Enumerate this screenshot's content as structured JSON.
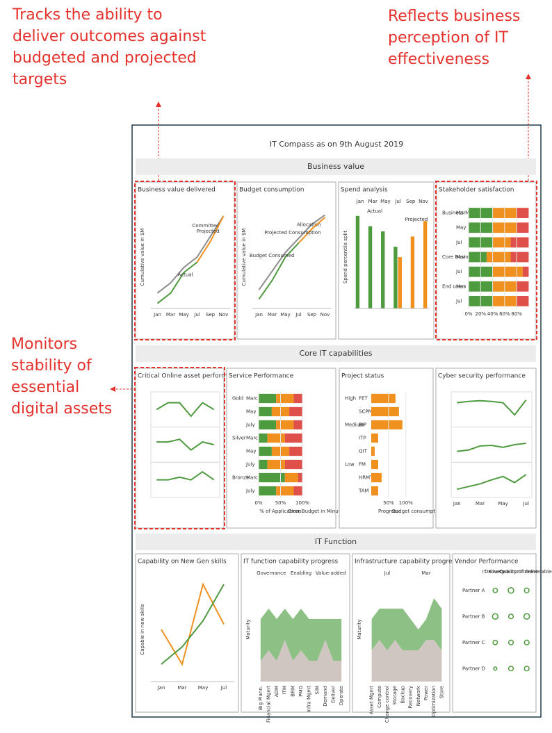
{
  "annotations": {
    "top_left": [
      "Tracks the ability to",
      "deliver outcomes against",
      "budgeted and projected",
      "targets"
    ],
    "top_right": [
      "Reflects business",
      "perception of IT",
      "effectiveness"
    ],
    "left": [
      "Monitors",
      "stability of",
      "essential",
      "digital assets"
    ]
  },
  "title": "IT Compass as on 9th August 2019",
  "sections": [
    {
      "title": "Business value",
      "panels": [
        {
          "title": "Business value delivered",
          "chart": {
            "type": "line",
            "y_label": "Cumulative value in $M",
            "categories": [
              "Jan",
              "Mar",
              "May",
              "Jul",
              "Sep",
              "Nov"
            ],
            "ylim": [
              0,
              20
            ],
            "series": [
              {
                "name": "Committed",
                "color": "#8c8c8c",
                "values": [
                  3,
                  5,
                  8,
                  10,
                  14,
                  18
                ]
              },
              {
                "name": "Actual",
                "color": "#4e9a3e",
                "values": [
                  1,
                  3,
                  7,
                  9,
                  null,
                  null
                ]
              },
              {
                "name": "Projected",
                "color": "#f0901e",
                "values": [
                  null,
                  null,
                  null,
                  9,
                  13,
                  18
                ]
              }
            ]
          }
        },
        {
          "title": "Budget consumption",
          "chart": {
            "type": "line",
            "y_label": "Cumulative value in $M",
            "categories": [
              "Jan",
              "Mar",
              "May",
              "Jul",
              "Sep",
              "Nov"
            ],
            "ylim": [
              0,
              220
            ],
            "series": [
              {
                "name": "Allocation",
                "color": "#8c8c8c",
                "values": [
                  40,
                  80,
                  120,
                  150,
                  180,
                  200
                ]
              },
              {
                "name": "Budget Consumed",
                "color": "#4e9a3e",
                "values": [
                  20,
                  60,
                  110,
                  140,
                  null,
                  null
                ]
              },
              {
                "name": "Projected Consumption",
                "color": "#f0901e",
                "values": [
                  null,
                  null,
                  null,
                  140,
                  170,
                  195
                ]
              }
            ]
          }
        },
        {
          "title": "Spend analysis",
          "chart": {
            "type": "bar",
            "y_label": "Spend percentile split",
            "categories": [
              "Jan",
              "Mar",
              "May",
              "Jul",
              "Sep",
              "Nov"
            ],
            "ylim": [
              0,
              100
            ],
            "series": [
              {
                "name": "Actual",
                "color": "#4e9a3e",
                "values": [
                  90,
                  80,
                  75,
                  60,
                  null,
                  null
                ]
              },
              {
                "name": "Projected",
                "color": "#f0901e",
                "values": [
                  null,
                  null,
                  null,
                  50,
                  70,
                  85
                ]
              }
            ]
          }
        },
        {
          "title": "Stakeholder satisfaction",
          "chart": {
            "type": "hstack",
            "groups": [
              "Business Mgmt",
              null,
              null,
              "Core Business",
              null,
              "End users",
              null
            ],
            "categories": [
              "Mar",
              "May",
              "Jul",
              "Mar",
              "Jul",
              "Mar",
              "Jul"
            ],
            "xlim": [
              0,
              100
            ],
            "xticks": [
              {
                "value": 0,
                "label": "0%"
              },
              {
                "value": 20,
                "label": "20%"
              },
              {
                "value": 40,
                "label": "40%"
              },
              {
                "value": 60,
                "label": "60%"
              },
              {
                "value": 80,
                "label": "80%"
              }
            ],
            "series": [
              {
                "color": "#4e9a3e",
                "values": [
                  40,
                  40,
                  40,
                  30,
                  40,
                  40,
                  40
                ]
              },
              {
                "color": "#f0901e",
                "values": [
                  40,
                  40,
                  30,
                  40,
                  50,
                  40,
                  40
                ]
              },
              {
                "color": "#e0504a",
                "values": [
                  20,
                  20,
                  30,
                  30,
                  10,
                  20,
                  20
                ]
              }
            ]
          }
        }
      ]
    },
    {
      "title": "Core IT capabilities",
      "panels": [
        {
          "title": "Critical Online asset performance",
          "chart": {
            "type": "multi_line",
            "categories": [
              null,
              null,
              null,
              null,
              null,
              null
            ],
            "series": [
              {
                "color": "#4e9a3e",
                "ylim": [
                  0,
                  4
                ],
                "values": [
                  2,
                  3,
                  3,
                  1,
                  3,
                  2
                ]
              },
              {
                "color": "#4e9a3e",
                "ylim": [
                  0,
                  1
                ],
                "values": [
                  0.6,
                  0.6,
                  0.7,
                  0.3,
                  0.6,
                  0.5
                ]
              },
              {
                "color": "#4e9a3e",
                "ylim": [
                  0,
                  2
                ],
                "values": [
                  1,
                  1,
                  1.2,
                  1,
                  1.6,
                  1
                ]
              }
            ]
          }
        },
        {
          "title": "Service Performance",
          "chart": {
            "type": "hstack",
            "x_label": "% of Applications",
            "x_label2": "Error Budget in Minutes",
            "groups": [
              "Gold",
              null,
              null,
              "Silver",
              null,
              null,
              "Bronze",
              null
            ],
            "categories": [
              "March",
              "May",
              "July",
              "March",
              "May",
              "July",
              "March",
              "July"
            ],
            "xlim": [
              0,
              100
            ],
            "xticks": [
              {
                "value": 0,
                "label": "0%"
              },
              {
                "value": 50,
                "label": "50%"
              },
              {
                "value": 100,
                "label": "100%"
              }
            ],
            "series": [
              {
                "color": "#4e9a3e",
                "values": [
                  40,
                  30,
                  40,
                  20,
                  30,
                  20,
                  60,
                  40
                ]
              },
              {
                "color": "#f0901e",
                "values": [
                  40,
                  40,
                  40,
                  40,
                  40,
                  40,
                  30,
                  40
                ]
              },
              {
                "color": "#e0504a",
                "values": [
                  20,
                  30,
                  20,
                  40,
                  30,
                  40,
                  10,
                  20
                ]
              }
            ]
          }
        },
        {
          "title": "Project status",
          "chart": {
            "type": "hstack",
            "x_label": "Progress",
            "x_label2": "Budget consumption",
            "groups": [
              "High",
              null,
              "Medium",
              null,
              null,
              "Low",
              null,
              null
            ],
            "categories": [
              "FET",
              "SCPM",
              "BIP",
              "ITP",
              "QIT",
              "FM",
              "HRMT",
              "TAM"
            ],
            "xlim": [
              0,
              100
            ],
            "xticks": [
              {
                "value": 50,
                "label": "50%"
              },
              {
                "value": 100,
                "label": "100%"
              }
            ],
            "series": [
              {
                "color": "#f0901e",
                "values": [
                  70,
                  80,
                  90,
                  20,
                  10,
                  20,
                  30,
                  20
                ]
              }
            ]
          }
        },
        {
          "title": "Cyber security performance",
          "chart": {
            "type": "multi_line",
            "categories": [
              "Jan",
              null,
              "Mar",
              null,
              "May",
              null,
              "Jul"
            ],
            "series": [
              {
                "color": "#4e9a3e",
                "ylim": [
                  60,
                  100
                ],
                "values": [
                  90,
                  92,
                  93,
                  92,
                  90,
                  72,
                  94
                ]
              },
              {
                "color": "#4e9a3e",
                "ylim": [
                  60,
                  100
                ],
                "values": [
                  70,
                  72,
                  78,
                  79,
                  76,
                  80,
                  82
                ]
              },
              {
                "color": "#4e9a3e",
                "ylim": [
                  60,
                  100
                ],
                "values": [
                  66,
                  70,
                  74,
                  80,
                  85,
                  76,
                  88
                ]
              }
            ]
          }
        }
      ]
    },
    {
      "title": "IT Function",
      "panels": [
        {
          "title": "Capability on New Gen skills",
          "chart": {
            "type": "line",
            "y_label": "Capable in new skills",
            "categories": [
              "Jan",
              "Mar",
              "May",
              "Jul"
            ],
            "ylim": [
              0,
              60
            ],
            "series": [
              {
                "color": "#f0901e",
                "values": [
                  30,
                  10,
                  56,
                  33
                ]
              },
              {
                "color": "#4e9a3e",
                "values": [
                  10,
                  20,
                  35,
                  56
                ]
              }
            ]
          }
        },
        {
          "title": "IT function capability progress",
          "chart": {
            "type": "area",
            "y_label": "Maturity",
            "headers": [
              "Governance",
              "Enabling",
              "Value-added"
            ],
            "categories": [
              "Big Plann.",
              "Financial Mgmt",
              "ADM",
              "ITM",
              "BRM",
              "PMO",
              "Infra Mgmt",
              "SIM",
              "Demand",
              "Deliver",
              "Operate"
            ],
            "ylim": [
              0,
              5
            ],
            "series": [
              {
                "color": "#cfc6c2",
                "values": [
                  1,
                  1.5,
                  1,
                  2,
                  1,
                  1.5,
                  1,
                  1,
                  2,
                  1,
                  1
                ]
              },
              {
                "color": "#8cc084",
                "values": [
                  2,
                  2,
                  2,
                  1.5,
                  2,
                  2,
                  2,
                  2,
                  1,
                  2,
                  2
                ]
              }
            ]
          }
        },
        {
          "title": "Infrastructure capability progress",
          "chart": {
            "type": "area",
            "y_label": "Maturity",
            "headers": [
              "Jul",
              "Mar"
            ],
            "categories": [
              "Asset Mgmt",
              "Compute",
              "Change control",
              "Storage",
              "Backup",
              "Recovery",
              "Network",
              "Power",
              "Optimization",
              "Store"
            ],
            "ylim": [
              0,
              5
            ],
            "series": [
              {
                "color": "#cfc6c2",
                "values": [
                  1.5,
                  2,
                  1.5,
                  2,
                  1.5,
                  1.5,
                  1.5,
                  2,
                  2,
                  1.5
                ]
              },
              {
                "color": "#8cc084",
                "values": [
                  1.5,
                  1.5,
                  2,
                  1.5,
                  2,
                  1.5,
                  1,
                  1,
                  2,
                  2
                ]
              }
            ]
          }
        },
        {
          "title": "Vendor Performance",
          "chart": {
            "type": "dots",
            "categories": [
              "Partner A",
              "Partner B",
              "Partner C",
              "Partner D"
            ],
            "series": [
              {
                "name": "IT Sourced",
                "color": "#4e9a3e",
                "values": [
                  20,
                  30,
                  20,
                  10
                ]
              },
              {
                "name": "Delivery commitment",
                "color": "#4e9a3e",
                "values": [
                  4,
                  3,
                  3,
                  3
                ]
              },
              {
                "name": "Quality of deliverables",
                "color": "#4e9a3e",
                "values": [
                  3,
                  4,
                  3,
                  3
                ]
              }
            ]
          }
        }
      ]
    }
  ]
}
